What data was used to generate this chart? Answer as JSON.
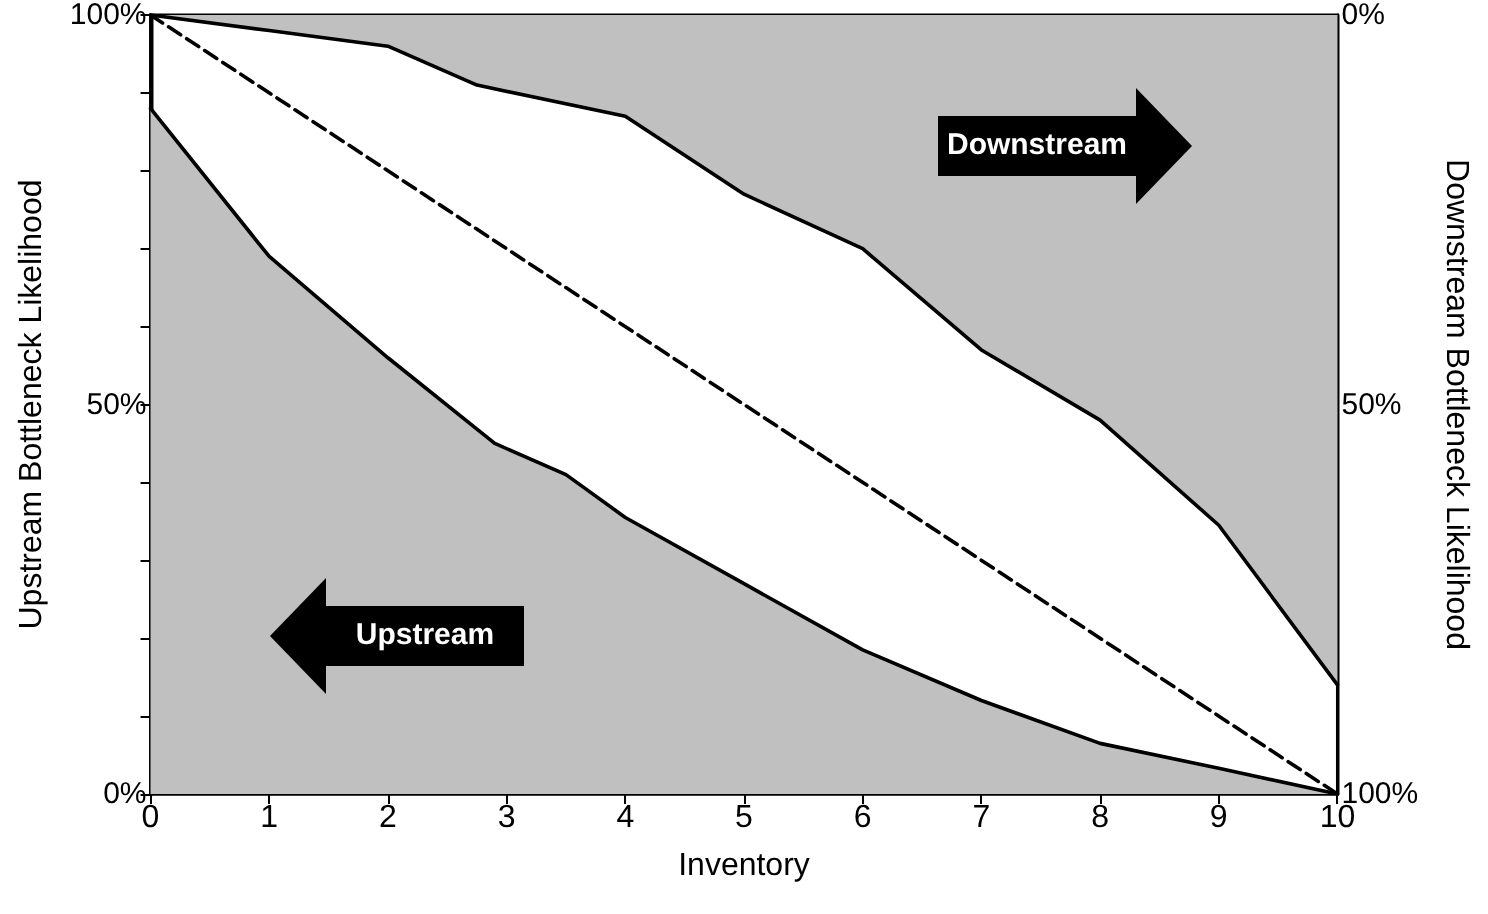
{
  "chart_data": {
    "type": "area",
    "xlabel": "Inventory",
    "ylabel": "Upstream Bottleneck Likelihood",
    "y2label": "Downstream Bottleneck Likelihood",
    "annotations": [
      "Upstream",
      "Downstream"
    ],
    "series": [
      {
        "color": "#c0c0c0",
        "x": [
          0,
          1,
          2,
          2.9,
          3.5,
          4,
          5,
          6,
          7,
          8,
          9,
          10
        ],
        "values": [
          88,
          69,
          56,
          45,
          41,
          35.5,
          27,
          18.5,
          12,
          6.5,
          3.3,
          0
        ]
      },
      {
        "axis": "y2",
        "color": "#c0c0c0",
        "x": [
          0,
          1,
          2,
          2.75,
          4,
          5,
          6,
          7,
          8,
          9,
          10
        ],
        "values": [
          0,
          2,
          4,
          9,
          13,
          23,
          30,
          43,
          52,
          65.5,
          86
        ]
      },
      {
        "type": "line",
        "line_style": "dashed",
        "color": "#000000",
        "x": [
          0,
          10
        ],
        "values": [
          100,
          0
        ]
      }
    ],
    "xlim": [
      0,
      10
    ],
    "xticks": [
      0,
      1,
      2,
      3,
      4,
      5,
      6,
      7,
      8,
      9,
      10
    ],
    "ylim": [
      0,
      100
    ],
    "yticks": [
      {
        "value": 0,
        "label": "0%"
      },
      {
        "value": 10,
        "label": null
      },
      {
        "value": 20,
        "label": null
      },
      {
        "value": 30,
        "label": null
      },
      {
        "value": 40,
        "label": null
      },
      {
        "value": 50,
        "label": "50%"
      },
      {
        "value": 60,
        "label": null
      },
      {
        "value": 70,
        "label": null
      },
      {
        "value": 80,
        "label": null
      },
      {
        "value": 90,
        "label": null
      },
      {
        "value": 100,
        "label": "100%"
      }
    ],
    "y2lim": [
      100,
      0
    ],
    "y2ticks": [
      {
        "value": 0,
        "label": "0%"
      },
      {
        "value": 50,
        "label": "50%"
      },
      {
        "value": 100,
        "label": "100%"
      }
    ],
    "grid": false,
    "marker": "none"
  }
}
